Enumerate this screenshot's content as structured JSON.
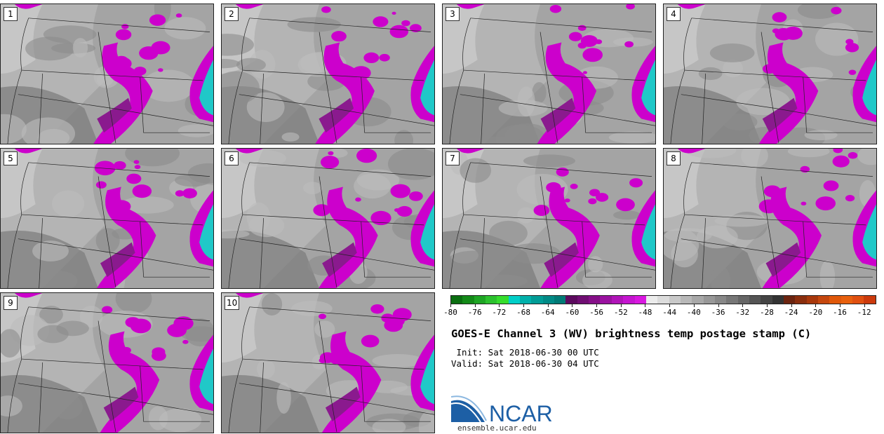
{
  "panels": [
    "1",
    "2",
    "3",
    "4",
    "5",
    "6",
    "7",
    "8",
    "9",
    "10"
  ],
  "colorbar": {
    "colors": [
      "#0a6e10",
      "#138a18",
      "#1ea524",
      "#2cc12e",
      "#36dd2d",
      "#00cfc8",
      "#00b0aa",
      "#009c96",
      "#008a86",
      "#007a76",
      "#5c0a5e",
      "#6f0e72",
      "#850f88",
      "#9a12a0",
      "#b014b8",
      "#c515d0",
      "#d918e0",
      "#ececec",
      "#dcdcdc",
      "#c9c9c9",
      "#b8b8b8",
      "#a8a8a8",
      "#989898",
      "#888888",
      "#777777",
      "#666666",
      "#555555",
      "#444444",
      "#333333",
      "#6b2410",
      "#8a2e0e",
      "#a8380c",
      "#c5470e",
      "#e0580a",
      "#e8600e",
      "#e05010",
      "#cc3a0c"
    ],
    "tick_labels": [
      "-80",
      "-76",
      "-72",
      "-68",
      "-64",
      "-60",
      "-56",
      "-52",
      "-48",
      "-44",
      "-40",
      "-36",
      "-32",
      "-28",
      "-24",
      "-20",
      "-16",
      "-12"
    ],
    "range": [
      -80,
      -10
    ]
  },
  "title": "GOES-E Channel 3 (WV) brightness temp postage stamp (C)",
  "init_line": " Init: Sat 2018-06-30 00 UTC",
  "valid_line": "Valid: Sat 2018-06-30 04 UTC",
  "logo_text": "NCAR",
  "logo_url": "ensemble.ucar.edu",
  "colors": {
    "moist": "#cc00cc",
    "cold": "#20c8c8",
    "background": "#9a9a9a"
  }
}
